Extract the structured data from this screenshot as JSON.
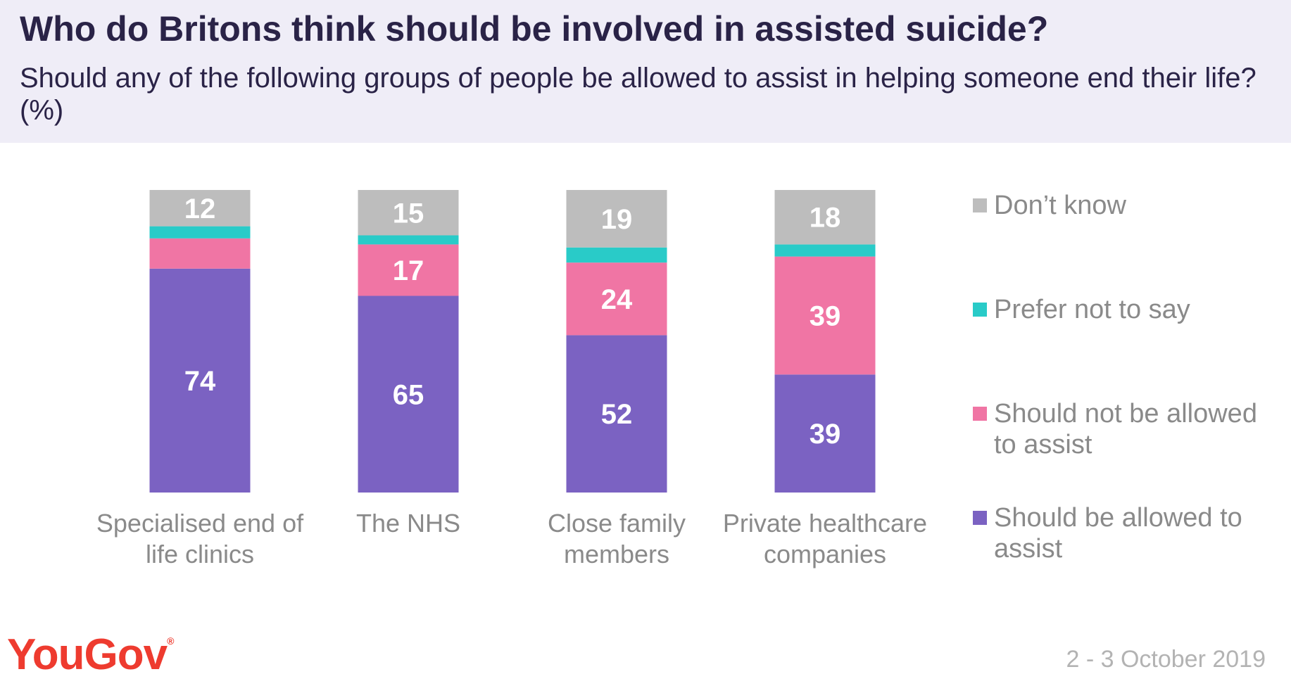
{
  "title": "Who do Britons think should be involved in assisted suicide?",
  "subtitle": "Should any of the following groups of people be allowed to assist in helping someone end their life? (%)",
  "brand": {
    "name": "YouGov",
    "registered_mark": "®",
    "color": "#ee3b2f"
  },
  "date": "2 - 3 October 2019",
  "chart_data": {
    "type": "bar",
    "stacked": true,
    "categories": [
      "Specialised end of life clinics",
      "The NHS",
      "Close family members",
      "Private healthcare companies"
    ],
    "series": [
      {
        "name": "Should be allowed to assist",
        "color": "#7b62c2",
        "values": [
          74,
          65,
          52,
          39
        ],
        "labels": [
          "74",
          "65",
          "52",
          "39"
        ]
      },
      {
        "name": "Should not be allowed to assist",
        "color": "#f075a4",
        "values": [
          10,
          17,
          24,
          39
        ],
        "labels": [
          "",
          "17",
          "24",
          "39"
        ]
      },
      {
        "name": "Prefer not to say",
        "color": "#29cbc8",
        "values": [
          4,
          3,
          5,
          4
        ],
        "labels": [
          "",
          "",
          "",
          ""
        ]
      },
      {
        "name": "Don't know",
        "color": "#bdbdbd",
        "values": [
          12,
          15,
          19,
          18
        ],
        "labels": [
          "12",
          "15",
          "19",
          "18"
        ]
      }
    ],
    "ylim": [
      0,
      100
    ],
    "legend_position": "right",
    "legend_order": [
      "Don't know",
      "Prefer not to say",
      "Should not be allowed to assist",
      "Should be allowed to assist"
    ],
    "legend_display": [
      "Don’t know",
      "Prefer not to say",
      "Should not be allowed to assist",
      "Should be allowed to assist"
    ]
  }
}
